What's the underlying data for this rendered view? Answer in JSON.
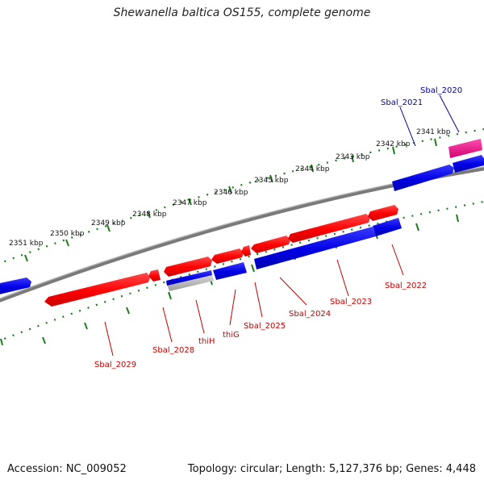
{
  "title": "Shewanella baltica OS155, complete genome",
  "footer": {
    "accession": "Accession: NC_009052",
    "info": "Topology: circular; Length: 5,127,376 bp; Genes: 4,448"
  },
  "colors": {
    "forward": "#ff0000",
    "reverse": "#0000e0",
    "rna": "#e6007e",
    "backbone": "#808080",
    "ticks": "#1f7a1f",
    "label_red": "#c40000",
    "label_blue": "#00009e"
  },
  "kbp_labels": [
    "2341 kbp",
    "2342 kbp",
    "2343 kbp",
    "2344 kbp",
    "2345 kbp",
    "2346 kbp",
    "2347 kbp",
    "2348 kbp",
    "2349 kbp",
    "2350 kbp",
    "2351 kbp"
  ],
  "gene_labels": [
    "Sbal_2020",
    "Sbal_2021",
    "Sbal_2022",
    "Sbal_2023",
    "Sbal_2024",
    "Sbal_2025",
    "thiG",
    "thiH",
    "Sbal_2028",
    "Sbal_2029"
  ]
}
